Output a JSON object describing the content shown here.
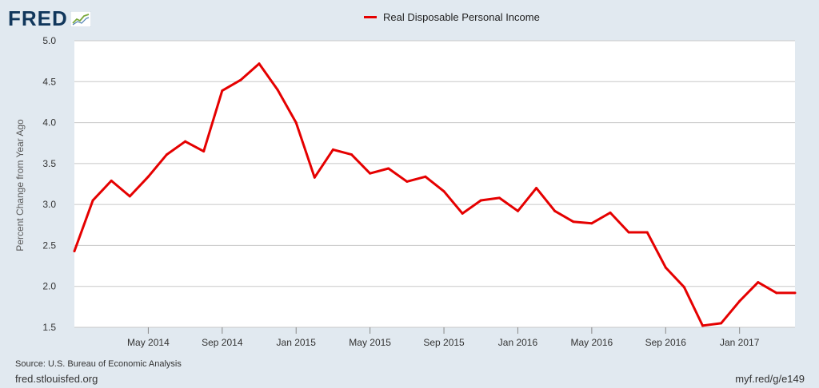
{
  "header": {
    "logo_text": "FRED",
    "logo_icon": "trend-chart-icon"
  },
  "footer": {
    "source": "Source: U.S. Bureau of Economic Analysis",
    "site": "fred.stlouisfed.org",
    "short_link": "myf.red/g/e149"
  },
  "colors": {
    "series": "#e50000",
    "plot_bg": "#ffffff",
    "page_bg": "#e1e9f0",
    "grid": "#c8c8c8"
  },
  "chart_data": {
    "type": "line",
    "title": "",
    "xlabel": "",
    "ylabel": "Percent Change from Year Ago",
    "ylim": [
      1.5,
      5.0
    ],
    "xlim": [
      "2014-01",
      "2017-04"
    ],
    "y_ticks": [
      "1.5",
      "2.0",
      "2.5",
      "3.0",
      "3.5",
      "4.0",
      "4.5",
      "5.0"
    ],
    "x_ticks": [
      {
        "x": "2014-05",
        "label": "May 2014"
      },
      {
        "x": "2014-09",
        "label": "Sep 2014"
      },
      {
        "x": "2015-01",
        "label": "Jan 2015"
      },
      {
        "x": "2015-05",
        "label": "May 2015"
      },
      {
        "x": "2015-09",
        "label": "Sep 2015"
      },
      {
        "x": "2016-01",
        "label": "Jan 2016"
      },
      {
        "x": "2016-05",
        "label": "May 2016"
      },
      {
        "x": "2016-09",
        "label": "Sep 2016"
      },
      {
        "x": "2017-01",
        "label": "Jan 2017"
      }
    ],
    "grid": true,
    "legend_position": "top-center",
    "series": [
      {
        "name": "Real Disposable Personal Income",
        "color": "#e50000",
        "x": [
          "2014-01",
          "2014-02",
          "2014-03",
          "2014-04",
          "2014-05",
          "2014-06",
          "2014-07",
          "2014-08",
          "2014-09",
          "2014-10",
          "2014-11",
          "2014-12",
          "2015-01",
          "2015-02",
          "2015-03",
          "2015-04",
          "2015-05",
          "2015-06",
          "2015-07",
          "2015-08",
          "2015-09",
          "2015-10",
          "2015-11",
          "2015-12",
          "2016-01",
          "2016-02",
          "2016-03",
          "2016-04",
          "2016-05",
          "2016-06",
          "2016-07",
          "2016-08",
          "2016-09",
          "2016-10",
          "2016-11",
          "2016-12",
          "2017-01",
          "2017-02",
          "2017-03",
          "2017-04"
        ],
        "values": [
          2.43,
          3.05,
          3.29,
          3.1,
          3.34,
          3.61,
          3.77,
          3.65,
          4.39,
          4.52,
          4.72,
          4.4,
          4.0,
          3.33,
          3.67,
          3.61,
          3.38,
          3.44,
          3.28,
          3.34,
          3.16,
          2.89,
          3.05,
          3.08,
          2.92,
          3.2,
          2.92,
          2.79,
          2.77,
          2.9,
          2.66,
          2.66,
          2.23,
          1.99,
          1.52,
          1.55,
          1.82,
          2.05,
          1.92,
          1.92
        ]
      }
    ]
  }
}
